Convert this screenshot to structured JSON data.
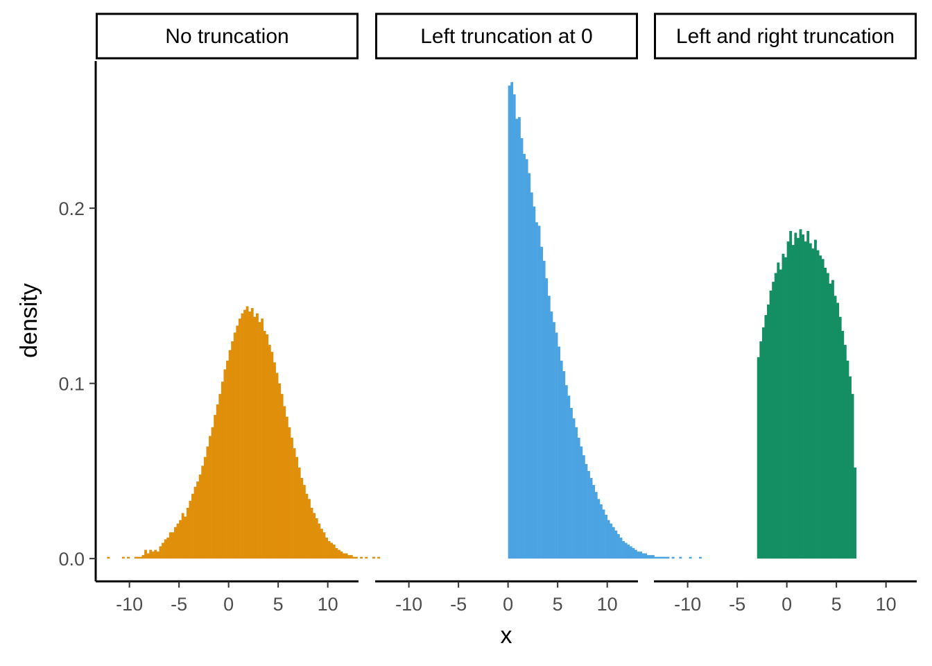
{
  "chart_data": {
    "type": "bar",
    "subtype": "faceted-histogram",
    "xlabel": "x",
    "ylabel": "density",
    "xlim": [
      -13.4,
      13.1
    ],
    "ylim": [
      -0.013,
      0.284
    ],
    "x_ticks": [
      -10,
      -5,
      0,
      5,
      10
    ],
    "x_tick_labels": [
      "-10",
      "-5",
      "0",
      "5",
      "10"
    ],
    "y_ticks": [
      0,
      0.1,
      0.2
    ],
    "y_tick_labels": [
      "0.0",
      "0.1",
      "0.2"
    ],
    "grid": false,
    "legend": "none",
    "bin_width": 0.25,
    "facets": [
      {
        "title": "No truncation",
        "color": "#E08F0B",
        "x_start": -12.25,
        "values": [
          0.001,
          0,
          0,
          0,
          0,
          0,
          0.001,
          0,
          0.001,
          0,
          0,
          0.001,
          0.001,
          0.001,
          0.002,
          0.005,
          0.003,
          0.005,
          0.004,
          0.005,
          0.004,
          0.007,
          0.009,
          0.011,
          0.012,
          0.015,
          0.015,
          0.018,
          0.02,
          0.022,
          0.026,
          0.024,
          0.029,
          0.033,
          0.037,
          0.041,
          0.044,
          0.048,
          0.053,
          0.058,
          0.064,
          0.07,
          0.075,
          0.082,
          0.088,
          0.094,
          0.101,
          0.108,
          0.113,
          0.119,
          0.124,
          0.129,
          0.133,
          0.137,
          0.14,
          0.142,
          0.144,
          0.141,
          0.143,
          0.138,
          0.14,
          0.135,
          0.137,
          0.13,
          0.128,
          0.122,
          0.118,
          0.112,
          0.106,
          0.1,
          0.094,
          0.087,
          0.081,
          0.075,
          0.069,
          0.063,
          0.058,
          0.052,
          0.046,
          0.042,
          0.037,
          0.034,
          0.029,
          0.026,
          0.023,
          0.02,
          0.017,
          0.015,
          0.012,
          0.01,
          0.009,
          0.008,
          0.006,
          0.005,
          0.004,
          0.003,
          0.003,
          0.002,
          0.002,
          0.001,
          0.001,
          0,
          0.001,
          0,
          0.001,
          0,
          0,
          0.001,
          0,
          0.001
        ]
      },
      {
        "title": "Left truncation at 0",
        "color": "#4BA4E1",
        "x_start": 0,
        "values": [
          0.27,
          0.272,
          0.265,
          0.251,
          0.252,
          0.24,
          0.231,
          0.228,
          0.22,
          0.209,
          0.201,
          0.192,
          0.19,
          0.178,
          0.17,
          0.16,
          0.15,
          0.141,
          0.135,
          0.129,
          0.121,
          0.113,
          0.107,
          0.099,
          0.093,
          0.086,
          0.08,
          0.075,
          0.069,
          0.064,
          0.059,
          0.054,
          0.05,
          0.046,
          0.042,
          0.038,
          0.034,
          0.031,
          0.028,
          0.025,
          0.022,
          0.02,
          0.018,
          0.016,
          0.014,
          0.012,
          0.01,
          0.009,
          0.008,
          0.007,
          0.006,
          0.005,
          0.004,
          0.004,
          0.003,
          0.003,
          0.002,
          0.002,
          0.002,
          0.001,
          0.001,
          0.001,
          0.001,
          0.001,
          0.001,
          0,
          0.001,
          0,
          0,
          0.001,
          0,
          0,
          0,
          0.001,
          0,
          0,
          0,
          0.001
        ]
      },
      {
        "title": "Left and right truncation",
        "color": "#148E63",
        "x_start": -3,
        "values": [
          0.115,
          0.124,
          0.132,
          0.139,
          0.145,
          0.153,
          0.158,
          0.163,
          0.169,
          0.165,
          0.174,
          0.172,
          0.181,
          0.187,
          0.179,
          0.186,
          0.183,
          0.188,
          0.185,
          0.181,
          0.187,
          0.18,
          0.177,
          0.182,
          0.176,
          0.173,
          0.171,
          0.166,
          0.163,
          0.157,
          0.159,
          0.15,
          0.146,
          0.138,
          0.13,
          0.122,
          0.113,
          0.104,
          0.094,
          0.052
        ]
      }
    ]
  }
}
